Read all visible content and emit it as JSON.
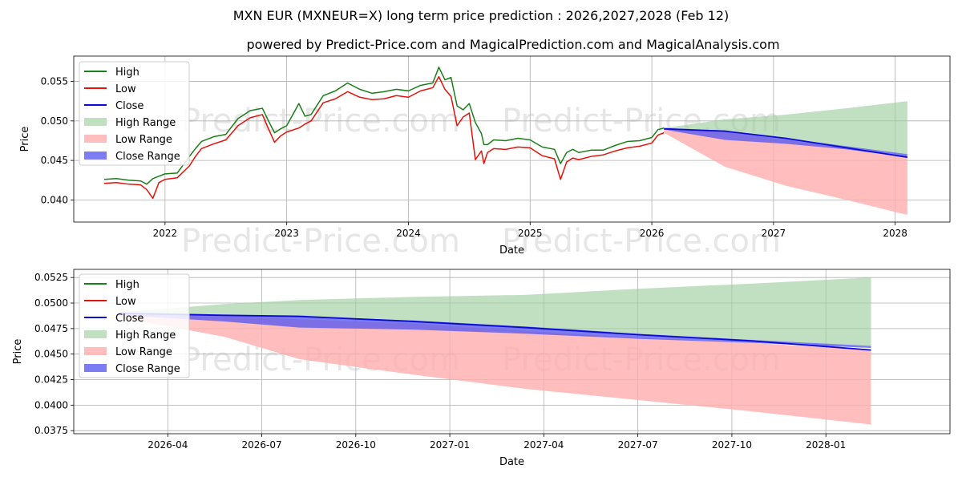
{
  "title": "MXN EUR (MXNEUR=X) long term price prediction : 2026,2027,2028 (Feb 12)",
  "subtitle": "powered by Predict-Price.com and MagicalPrediction.com and MagicalAnalysis.com",
  "watermark": "Predict-Price.com",
  "colors": {
    "high": "#1a7f1a",
    "low": "#e3120b",
    "close": "#0a0ad6",
    "high_range": "#9fd09f",
    "low_range": "#ffadad",
    "close_range": "#5b5bf0",
    "grid": "#b0b0b0",
    "watermark": "#e6e6e6"
  },
  "legend": {
    "labels": [
      "High",
      "Low",
      "Close",
      "High Range",
      "Low Range",
      "Close Range"
    ]
  },
  "chart_data": [
    {
      "type": "line",
      "name": "long-term",
      "xlabel": "Date",
      "ylabel": "Price",
      "xlim": [
        2021.25,
        2028.45
      ],
      "ylim": [
        0.0372,
        0.0582
      ],
      "xticks": [
        2022,
        2023,
        2024,
        2025,
        2026,
        2027,
        2028
      ],
      "xtick_labels": [
        "2022",
        "2023",
        "2024",
        "2025",
        "2026",
        "2027",
        "2028"
      ],
      "yticks": [
        0.04,
        0.045,
        0.05,
        0.055
      ],
      "ytick_labels": [
        "0.040",
        "0.045",
        "0.050",
        "0.055"
      ],
      "grid": true,
      "legend_position": "upper-left",
      "history": {
        "x": [
          2021.5,
          2021.6,
          2021.7,
          2021.8,
          2021.85,
          2021.9,
          2021.95,
          2022.0,
          2022.1,
          2022.2,
          2022.25,
          2022.3,
          2022.4,
          2022.5,
          2022.6,
          2022.7,
          2022.8,
          2022.85,
          2022.9,
          2022.95,
          2023.0,
          2023.1,
          2023.15,
          2023.2,
          2023.3,
          2023.4,
          2023.5,
          2023.6,
          2023.7,
          2023.8,
          2023.9,
          2024.0,
          2024.1,
          2024.2,
          2024.25,
          2024.3,
          2024.35,
          2024.4,
          2024.45,
          2024.5,
          2024.55,
          2024.6,
          2024.62,
          2024.65,
          2024.7,
          2024.8,
          2024.9,
          2025.0,
          2025.1,
          2025.2,
          2025.25,
          2025.3,
          2025.35,
          2025.4,
          2025.5,
          2025.6,
          2025.7,
          2025.8,
          2025.9,
          2026.0,
          2026.05,
          2026.1
        ],
        "high": [
          0.0426,
          0.0427,
          0.0425,
          0.0424,
          0.042,
          0.0427,
          0.043,
          0.0433,
          0.0434,
          0.0455,
          0.0465,
          0.0474,
          0.048,
          0.0483,
          0.0503,
          0.0513,
          0.0516,
          0.05,
          0.0485,
          0.049,
          0.0494,
          0.0522,
          0.0506,
          0.0508,
          0.0532,
          0.0538,
          0.0548,
          0.054,
          0.0535,
          0.0537,
          0.054,
          0.0538,
          0.0545,
          0.0548,
          0.0568,
          0.0552,
          0.0555,
          0.0519,
          0.0514,
          0.0522,
          0.0498,
          0.0484,
          0.047,
          0.047,
          0.0476,
          0.0475,
          0.0478,
          0.0476,
          0.0467,
          0.0464,
          0.0446,
          0.046,
          0.0464,
          0.046,
          0.0463,
          0.0463,
          0.0469,
          0.0474,
          0.0475,
          0.0479,
          0.0489,
          0.0491
        ],
        "low": [
          0.0421,
          0.0422,
          0.042,
          0.0419,
          0.0413,
          0.0402,
          0.0422,
          0.0426,
          0.0428,
          0.0443,
          0.0455,
          0.0465,
          0.0471,
          0.0476,
          0.0494,
          0.0504,
          0.0508,
          0.049,
          0.0473,
          0.0481,
          0.0486,
          0.0491,
          0.0496,
          0.05,
          0.0523,
          0.0528,
          0.0537,
          0.053,
          0.0527,
          0.0528,
          0.0532,
          0.053,
          0.0538,
          0.0542,
          0.0556,
          0.054,
          0.0531,
          0.0494,
          0.0505,
          0.051,
          0.0451,
          0.0462,
          0.0446,
          0.046,
          0.0465,
          0.0464,
          0.0467,
          0.0466,
          0.0456,
          0.0452,
          0.0426,
          0.0448,
          0.0453,
          0.0451,
          0.0455,
          0.0457,
          0.0462,
          0.0466,
          0.0468,
          0.0472,
          0.0482,
          0.0485
        ]
      },
      "forecast": {
        "x": [
          2026.1,
          2026.6,
          2027.1,
          2027.6,
          2028.1
        ],
        "high_range": [
          [
            0.0489,
            0.0491
          ],
          [
            0.0488,
            0.0502
          ],
          [
            0.0478,
            0.0508
          ],
          [
            0.0467,
            0.0516
          ],
          [
            0.0458,
            0.0525
          ]
        ],
        "low_range": [
          [
            0.0485,
            0.0491
          ],
          [
            0.0442,
            0.0486
          ],
          [
            0.0418,
            0.0476
          ],
          [
            0.04,
            0.0465
          ],
          [
            0.0381,
            0.0454
          ]
        ],
        "close_range": [
          [
            0.0489,
            0.0491
          ],
          [
            0.0476,
            0.0488
          ],
          [
            0.0471,
            0.0478
          ],
          [
            0.0464,
            0.0468
          ],
          [
            0.0454,
            0.0458
          ]
        ],
        "close": [
          0.049,
          0.0487,
          0.0478,
          0.0466,
          0.0454
        ]
      }
    },
    {
      "type": "area",
      "name": "forecast-zoom",
      "xlabel": "Date",
      "ylabel": "Price",
      "xlim": [
        2026.0,
        2028.33
      ],
      "ylim": [
        0.0372,
        0.0533
      ],
      "xticks": [
        2026.25,
        2026.5,
        2026.75,
        2027.0,
        2027.25,
        2027.5,
        2027.75,
        2028.0
      ],
      "xtick_labels": [
        "2026-04",
        "2026-07",
        "2026-10",
        "2027-01",
        "2027-04",
        "2027-07",
        "2027-10",
        "2028-01"
      ],
      "yticks": [
        0.0375,
        0.04,
        0.0425,
        0.045,
        0.0475,
        0.05,
        0.0525
      ],
      "ytick_labels": [
        "0.0375",
        "0.0400",
        "0.0425",
        "0.0450",
        "0.0475",
        "0.0500",
        "0.0525"
      ],
      "grid": true,
      "legend_position": "upper-left",
      "forecast": {
        "x": [
          2026.12,
          2026.4,
          2026.6,
          2026.9,
          2027.2,
          2027.5,
          2027.8,
          2028.12
        ],
        "high_range": [
          [
            0.049,
            0.0491
          ],
          [
            0.0488,
            0.0499
          ],
          [
            0.0486,
            0.0503
          ],
          [
            0.0482,
            0.0506
          ],
          [
            0.0476,
            0.0508
          ],
          [
            0.047,
            0.0514
          ],
          [
            0.0464,
            0.0519
          ],
          [
            0.0458,
            0.0525
          ]
        ],
        "low_range": [
          [
            0.0486,
            0.049
          ],
          [
            0.0467,
            0.0488
          ],
          [
            0.0445,
            0.0484
          ],
          [
            0.043,
            0.048
          ],
          [
            0.0416,
            0.0473
          ],
          [
            0.0405,
            0.0466
          ],
          [
            0.0394,
            0.0461
          ],
          [
            0.0381,
            0.0454
          ]
        ],
        "close_range": [
          [
            0.0488,
            0.0491
          ],
          [
            0.0482,
            0.0488
          ],
          [
            0.0476,
            0.0487
          ],
          [
            0.0474,
            0.0483
          ],
          [
            0.047,
            0.0477
          ],
          [
            0.0465,
            0.047
          ],
          [
            0.0461,
            0.0464
          ],
          [
            0.0456,
            0.0458
          ]
        ],
        "close": [
          0.049,
          0.0488,
          0.0487,
          0.0482,
          0.0476,
          0.0469,
          0.0463,
          0.0454
        ]
      }
    }
  ]
}
